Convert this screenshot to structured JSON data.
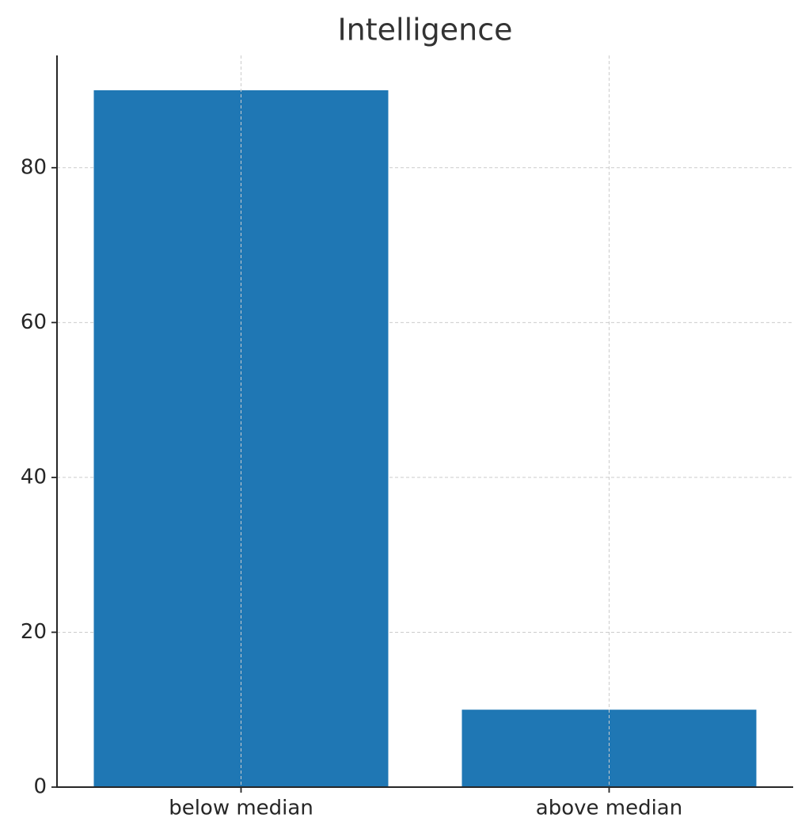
{
  "chart_data": {
    "type": "bar",
    "title": "Intelligence",
    "categories": [
      "below median",
      "above median"
    ],
    "values": [
      90,
      10
    ],
    "color": "#1f77b4",
    "ylim": [
      0,
      94.5
    ],
    "yticks": [
      0,
      20,
      40,
      60,
      80
    ],
    "grid": true
  }
}
